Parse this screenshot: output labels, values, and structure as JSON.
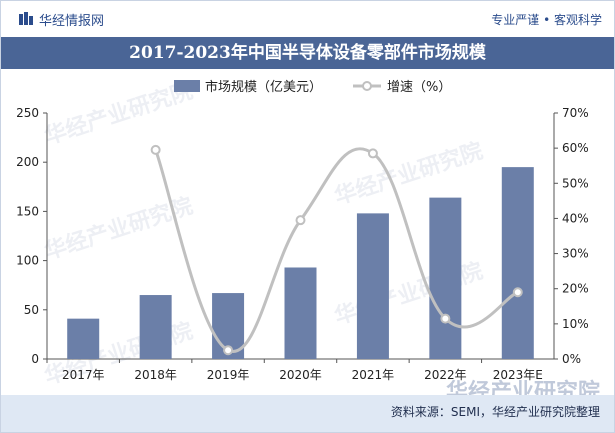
{
  "header": {
    "brand": "华经情报网",
    "slogan": "专业严谨 • 客观科学"
  },
  "watermark": "华经产业研究院",
  "footer": {
    "source": "资料来源：SEMI，华经产业研究院整理"
  },
  "colors": {
    "bar": "#6b7fa8",
    "line": "#c0c0c0",
    "title_bg": "#4a6596",
    "footer_bg": "#dfe8f4"
  },
  "chart_data": {
    "type": "bar",
    "title": "2017-2023年中国半导体设备零部件市场规模",
    "categories": [
      "2017年",
      "2018年",
      "2019年",
      "2020年",
      "2021年",
      "2022年",
      "2023年E"
    ],
    "series": [
      {
        "name": "市场规模（亿美元）",
        "type": "bar",
        "axis": "left",
        "values": [
          41,
          65,
          67,
          93,
          148,
          164,
          195
        ]
      },
      {
        "name": "增速（%）",
        "type": "line",
        "axis": "right",
        "values": [
          null,
          59.5,
          2.5,
          39.5,
          58.5,
          11.5,
          19
        ]
      }
    ],
    "yaxis_left": {
      "min": 0,
      "max": 250,
      "ticks": [
        "0",
        "50",
        "100",
        "150",
        "200",
        "250"
      ]
    },
    "yaxis_right": {
      "min": 0,
      "max": 70,
      "ticks": [
        "0%",
        "10%",
        "20%",
        "30%",
        "40%",
        "50%",
        "60%",
        "70%"
      ]
    },
    "legend_position": "top",
    "grid": false
  }
}
